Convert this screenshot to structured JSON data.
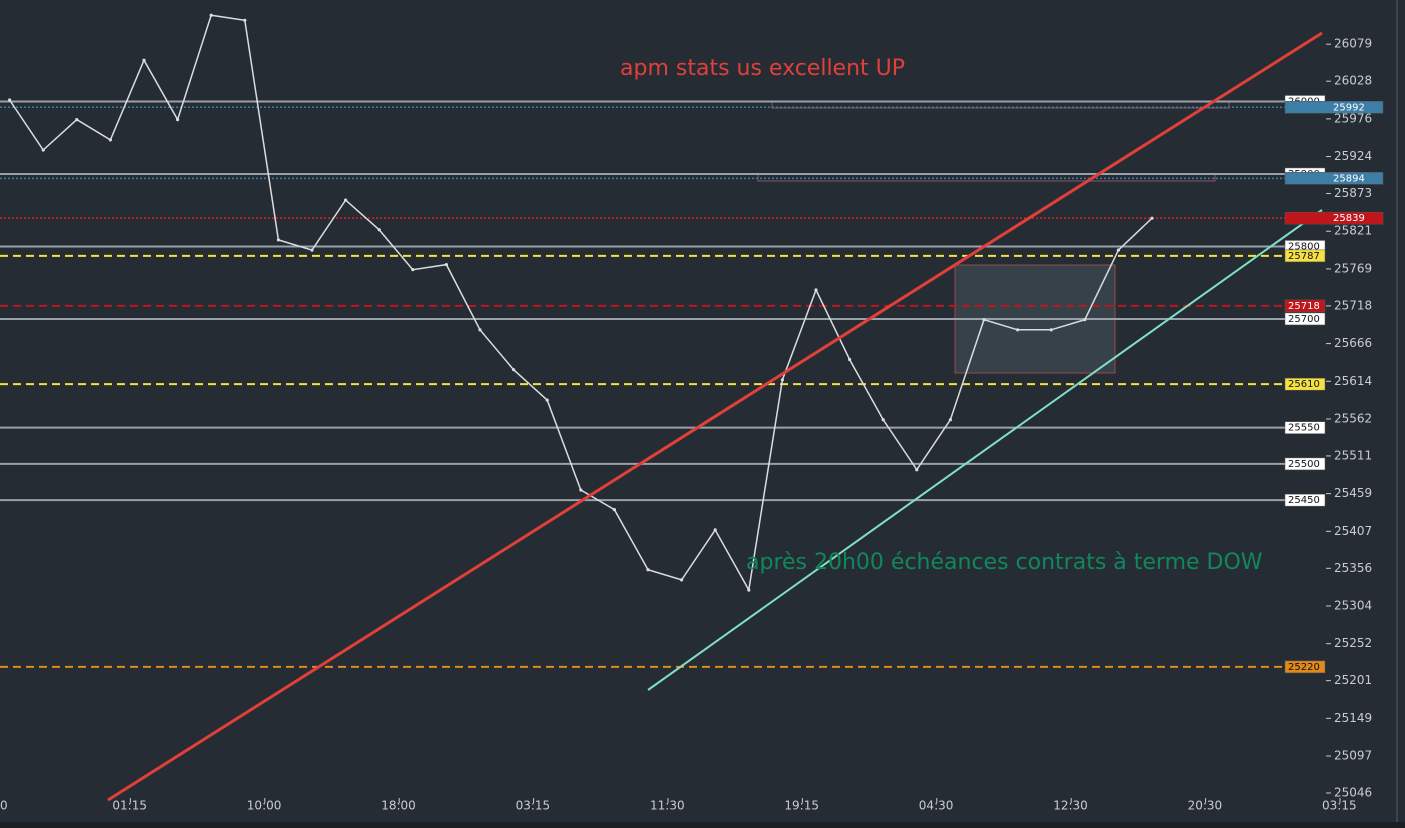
{
  "chart_data": {
    "type": "line",
    "annotations": [
      {
        "text": "apm stats us excellent UP",
        "color": "#e0403a"
      },
      {
        "text": "après 20h00 échéances contrats à terme DOW",
        "color": "#11875c"
      }
    ],
    "categories": [
      "0",
      null,
      null,
      null,
      "01:15",
      null,
      null,
      null,
      "10:00",
      null,
      null,
      null,
      "18:00",
      null,
      null,
      null,
      "03:15",
      null,
      null,
      null,
      "11:30",
      null,
      null,
      null,
      "19:15",
      null,
      null,
      null,
      "04:30",
      null,
      null,
      null,
      "12:30",
      null,
      null,
      null,
      "20:30",
      null,
      null,
      null,
      "03:15"
    ],
    "values": [
      null,
      26002,
      25933,
      25975,
      25947,
      26057,
      25975,
      26119,
      26112,
      25809,
      25795,
      25864,
      25823,
      25768,
      25775,
      25685,
      25630,
      25588,
      25464,
      25437,
      25354,
      25340,
      25409,
      25326,
      25616,
      25740,
      25644,
      25561,
      25492,
      25561,
      25699,
      25685,
      25685,
      25699,
      25795,
      25839,
      null,
      null,
      null,
      null,
      null
    ],
    "color": "#d9dde0",
    "ylim": [
      25006,
      26140
    ],
    "yticks": [
      26079,
      26028,
      25976,
      25924,
      25873,
      25821,
      25769,
      25718,
      25666,
      25614,
      25562,
      25511,
      25459,
      25407,
      25356,
      25304,
      25252,
      25201,
      25149,
      25097,
      25046
    ],
    "levels": [
      {
        "value": 26000,
        "color": "#9aa1a8",
        "style": "solid",
        "tag_bg": "#ffffff",
        "tag_fg": "#111111",
        "wide": false
      },
      {
        "value": 25992,
        "color": "#3d7ea6",
        "style": "dotted",
        "tag_bg": "#3d7ea6",
        "tag_fg": "#ffffff",
        "wide": true
      },
      {
        "value": 25900,
        "color": "#9aa1a8",
        "style": "solid",
        "tag_bg": "#ffffff",
        "tag_fg": "#111111",
        "wide": false
      },
      {
        "value": 25894,
        "color": "#3d7ea6",
        "style": "dotted",
        "tag_bg": "#3d7ea6",
        "tag_fg": "#ffffff",
        "wide": true
      },
      {
        "value": 25839,
        "color": "#e01f26",
        "style": "dotted",
        "tag_bg": "#c0161b",
        "tag_fg": "#ffffff",
        "wide": true
      },
      {
        "value": 25800,
        "color": "#9aa1a8",
        "style": "solid",
        "tag_bg": "#ffffff",
        "tag_fg": "#111111",
        "wide": false
      },
      {
        "value": 25787,
        "color": "#f5e142",
        "style": "dashed",
        "tag_bg": "#f5e142",
        "tag_fg": "#111111",
        "wide": false
      },
      {
        "value": 25718,
        "color": "#c0161b",
        "style": "dashed",
        "tag_bg": "#c0161b",
        "tag_fg": "#ffffff",
        "wide": false
      },
      {
        "value": 25700,
        "color": "#9aa1a8",
        "style": "solid",
        "tag_bg": "#ffffff",
        "tag_fg": "#111111",
        "wide": false
      },
      {
        "value": 25610,
        "color": "#f5e142",
        "style": "dashed",
        "tag_bg": "#f5e142",
        "tag_fg": "#111111",
        "wide": false
      },
      {
        "value": 25550,
        "color": "#9aa1a8",
        "style": "solid",
        "tag_bg": "#ffffff",
        "tag_fg": "#111111",
        "wide": false
      },
      {
        "value": 25500,
        "color": "#9aa1a8",
        "style": "solid",
        "tag_bg": "#ffffff",
        "tag_fg": "#111111",
        "wide": false
      },
      {
        "value": 25450,
        "color": "#9aa1a8",
        "style": "solid",
        "tag_bg": "#ffffff",
        "tag_fg": "#111111",
        "wide": false
      },
      {
        "value": 25220,
        "color": "#e08a1b",
        "style": "dashed",
        "tag_bg": "#e08a1b",
        "tag_fg": "#111111",
        "wide": false
      }
    ]
  }
}
